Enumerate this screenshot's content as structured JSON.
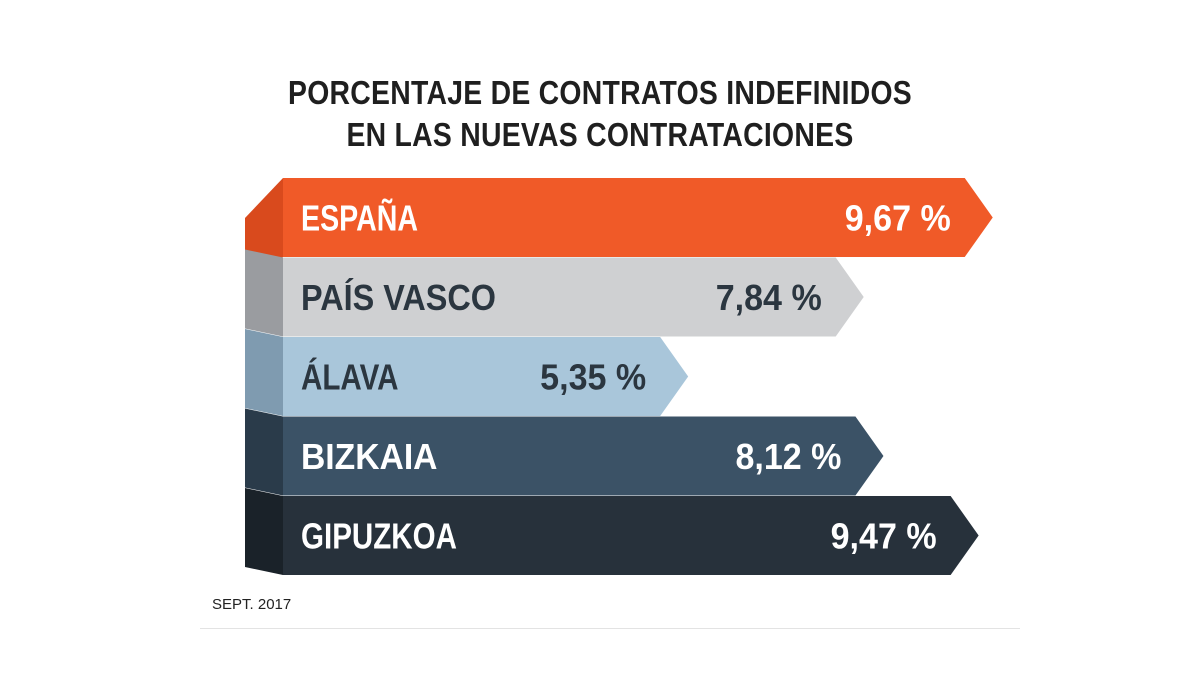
{
  "chart_data": {
    "type": "bar",
    "orientation": "horizontal",
    "title_lines": [
      "PORCENTAJE DE CONTRATOS INDEFINIDOS",
      "EN LAS NUEVAS CONTRATACIONES"
    ],
    "categories": [
      "ESPAÑA",
      "PAÍS VASCO",
      "ÁLAVA",
      "BIZKAIA",
      "GIPUZKOA"
    ],
    "values": [
      9.67,
      7.84,
      5.35,
      8.12,
      9.47
    ],
    "value_labels": [
      "9,67 %",
      "7,84 %",
      "5,35 %",
      "8,12 %",
      "9,47 %"
    ],
    "colors": [
      "#f05a28",
      "#cfd0d2",
      "#a9c6da",
      "#3b5266",
      "#27313b"
    ],
    "side_colors": [
      "#d94a1d",
      "#9a9ca0",
      "#7f9bb0",
      "#2a3b4a",
      "#1a2229"
    ],
    "label_colors": [
      "#ffffff",
      "#2b3640",
      "#2b3640",
      "#ffffff",
      "#ffffff"
    ],
    "unit": "%",
    "grid": false,
    "legend": "none"
  },
  "footnote": "SEPT. 2017"
}
